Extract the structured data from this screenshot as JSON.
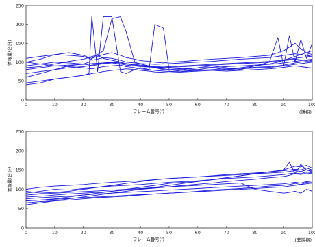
{
  "chart_data": [
    {
      "type": "line",
      "xlabel": "フレーム番号(f)",
      "ylabel": "情報量(合計)",
      "annotation": "(誘拐)",
      "xlim": [
        0,
        100
      ],
      "ylim": [
        0,
        250
      ],
      "xticks": [
        0,
        10,
        20,
        30,
        40,
        50,
        60,
        70,
        80,
        90,
        100
      ],
      "yticks": [
        0,
        50,
        100,
        150,
        200,
        250
      ],
      "grid": false,
      "line_color": "#1a1adb",
      "x": [
        0,
        5,
        10,
        15,
        20,
        22,
        23,
        25,
        27,
        30,
        33,
        35,
        38,
        40,
        43,
        45,
        48,
        50,
        55,
        60,
        65,
        70,
        75,
        80,
        85,
        88,
        90,
        92,
        94,
        96,
        98,
        100
      ],
      "series": [
        {
          "values": [
            40,
            45,
            55,
            60,
            65,
            70,
            222,
            75,
            220,
            220,
            75,
            70,
            80,
            85,
            80,
            200,
            190,
            80,
            75,
            80,
            85,
            80,
            85,
            90,
            95,
            100,
            105,
            110,
            115,
            120,
            125,
            130
          ]
        },
        {
          "values": [
            60,
            70,
            80,
            90,
            95,
            100,
            110,
            120,
            130,
            215,
            220,
            180,
            100,
            95,
            90,
            85,
            80,
            78,
            80,
            85,
            90,
            85,
            80,
            90,
            100,
            165,
            90,
            170,
            100,
            160,
            110,
            150
          ]
        },
        {
          "values": [
            110,
            115,
            120,
            118,
            115,
            110,
            105,
            108,
            112,
            110,
            105,
            100,
            98,
            96,
            95,
            94,
            95,
            96,
            98,
            100,
            102,
            105,
            108,
            110,
            112,
            115,
            118,
            120,
            122,
            120,
            118,
            115
          ]
        },
        {
          "values": [
            100,
            108,
            120,
            125,
            118,
            112,
            110,
            115,
            120,
            125,
            118,
            112,
            108,
            104,
            102,
            100,
            98,
            100,
            102,
            105,
            108,
            110,
            112,
            115,
            118,
            125,
            130,
            140,
            150,
            135,
            125,
            120
          ]
        },
        {
          "values": [
            90,
            95,
            100,
            98,
            95,
            92,
            90,
            93,
            96,
            98,
            95,
            92,
            90,
            88,
            87,
            86,
            87,
            88,
            90,
            92,
            94,
            96,
            98,
            100,
            102,
            104,
            106,
            108,
            110,
            112,
            114,
            116
          ]
        },
        {
          "values": [
            80,
            85,
            90,
            92,
            94,
            95,
            96,
            97,
            98,
            99,
            98,
            96,
            94,
            92,
            90,
            88,
            87,
            86,
            88,
            90,
            92,
            94,
            96,
            98,
            100,
            102,
            104,
            106,
            108,
            106,
            104,
            102
          ]
        },
        {
          "values": [
            70,
            75,
            80,
            85,
            88,
            90,
            92,
            95,
            98,
            100,
            98,
            95,
            92,
            90,
            88,
            86,
            85,
            84,
            82,
            80,
            78,
            76,
            78,
            80,
            82,
            84,
            86,
            88,
            90,
            88,
            86,
            84
          ]
        },
        {
          "values": [
            45,
            50,
            55,
            60,
            65,
            68,
            70,
            72,
            75,
            78,
            80,
            82,
            80,
            78,
            76,
            74,
            73,
            72,
            74,
            76,
            78,
            80,
            82,
            84,
            86,
            88,
            90,
            92,
            94,
            96,
            98,
            100
          ]
        },
        {
          "values": [
            100,
            95,
            90,
            88,
            85,
            83,
            82,
            85,
            88,
            90,
            92,
            88,
            85,
            82,
            80,
            78,
            76,
            75,
            76,
            78,
            80,
            82,
            84,
            86,
            88,
            90,
            92,
            95,
            98,
            100,
            102,
            105
          ]
        },
        {
          "values": [
            85,
            88,
            95,
            102,
            108,
            112,
            115,
            118,
            110,
            105,
            100,
            96,
            92,
            90,
            88,
            85,
            82,
            80,
            82,
            84,
            86,
            88,
            90,
            92,
            94,
            96,
            98,
            100,
            102,
            104,
            106,
            108
          ]
        }
      ]
    },
    {
      "type": "line",
      "xlabel": "フレーム番号(f)",
      "ylabel": "情報量(合計)",
      "annotation": "(非誘拐)",
      "xlim": [
        0,
        100
      ],
      "ylim": [
        0,
        250
      ],
      "xticks": [
        0,
        10,
        20,
        30,
        40,
        50,
        60,
        70,
        80,
        90,
        100
      ],
      "yticks": [
        0,
        50,
        100,
        150,
        200,
        250
      ],
      "grid": false,
      "line_color": "#1a1adb",
      "x": [
        0,
        5,
        10,
        15,
        20,
        25,
        30,
        35,
        40,
        45,
        50,
        55,
        60,
        65,
        70,
        75,
        80,
        85,
        90,
        92,
        94,
        96,
        98,
        100
      ],
      "series": [
        {
          "values": [
            60,
            65,
            70,
            75,
            80,
            85,
            90,
            95,
            100,
            105,
            110,
            115,
            120,
            125,
            130,
            135,
            140,
            145,
            150,
            155,
            160,
            158,
            162,
            155
          ]
        },
        {
          "values": [
            70,
            72,
            75,
            80,
            85,
            90,
            95,
            100,
            105,
            110,
            115,
            118,
            120,
            125,
            130,
            135,
            140,
            145,
            150,
            170,
            140,
            165,
            150,
            145
          ]
        },
        {
          "values": [
            80,
            82,
            85,
            88,
            90,
            92,
            95,
            98,
            100,
            103,
            106,
            110,
            113,
            116,
            120,
            123,
            126,
            130,
            133,
            136,
            140,
            138,
            142,
            140
          ]
        },
        {
          "values": [
            90,
            95,
            100,
            98,
            102,
            105,
            108,
            110,
            112,
            115,
            118,
            120,
            122,
            125,
            128,
            130,
            132,
            135,
            138,
            140,
            142,
            140,
            145,
            142
          ]
        },
        {
          "values": [
            100,
            105,
            108,
            110,
            112,
            115,
            118,
            120,
            122,
            125,
            128,
            130,
            132,
            135,
            138,
            140,
            142,
            145,
            148,
            150,
            152,
            150,
            155,
            150
          ]
        },
        {
          "values": [
            95,
            90,
            92,
            95,
            100,
            105,
            110,
            115,
            120,
            125,
            128,
            130,
            132,
            134,
            136,
            138,
            140,
            142,
            144,
            146,
            148,
            146,
            150,
            148
          ]
        },
        {
          "values": [
            65,
            68,
            70,
            72,
            75,
            78,
            80,
            82,
            85,
            88,
            90,
            92,
            95,
            98,
            100,
            102,
            105,
            108,
            110,
            112,
            115,
            112,
            118,
            115
          ]
        },
        {
          "values": [
            75,
            78,
            80,
            82,
            85,
            88,
            90,
            92,
            94,
            96,
            98,
            100,
            102,
            104,
            106,
            108,
            110,
            112,
            114,
            116,
            118,
            116,
            120,
            118
          ]
        },
        {
          "values": [
            85,
            88,
            90,
            92,
            94,
            96,
            98,
            100,
            102,
            104,
            106,
            108,
            110,
            112,
            114,
            116,
            100,
            95,
            90,
            92,
            95,
            90,
            100,
            95
          ]
        },
        {
          "values": [
            70,
            72,
            74,
            76,
            78,
            80,
            82,
            84,
            86,
            88,
            90,
            92,
            94,
            96,
            98,
            100,
            102,
            104,
            106,
            108,
            110,
            112,
            114,
            116
          ]
        }
      ]
    }
  ]
}
